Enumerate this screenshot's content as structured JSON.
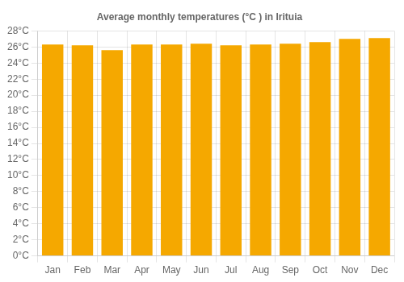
{
  "chart_data": {
    "type": "bar",
    "title": "Average monthly temperatures (°C ) in Irituia",
    "categories": [
      "Jan",
      "Feb",
      "Mar",
      "Apr",
      "May",
      "Jun",
      "Jul",
      "Aug",
      "Sep",
      "Oct",
      "Nov",
      "Dec"
    ],
    "values": [
      26.3,
      26.2,
      25.6,
      26.3,
      26.3,
      26.4,
      26.2,
      26.3,
      26.4,
      26.6,
      27.0,
      27.1
    ],
    "color": "#F5A800",
    "ylim": [
      0,
      28
    ],
    "yticks": [
      {
        "value": 0,
        "label": "0°C"
      },
      {
        "value": 2,
        "label": "2°C"
      },
      {
        "value": 4,
        "label": "4°C"
      },
      {
        "value": 6,
        "label": "6°C"
      },
      {
        "value": 8,
        "label": "8°C"
      },
      {
        "value": 10,
        "label": "10°C"
      },
      {
        "value": 12,
        "label": "12°C"
      },
      {
        "value": 14,
        "label": "14°C"
      },
      {
        "value": 16,
        "label": "16°C"
      },
      {
        "value": 18,
        "label": "18°C"
      },
      {
        "value": 20,
        "label": "20°C"
      },
      {
        "value": 22,
        "label": "22°C"
      },
      {
        "value": 24,
        "label": "24°C"
      },
      {
        "value": 26,
        "label": "26°C"
      },
      {
        "value": 28,
        "label": "28°C"
      }
    ],
    "grid": true
  }
}
